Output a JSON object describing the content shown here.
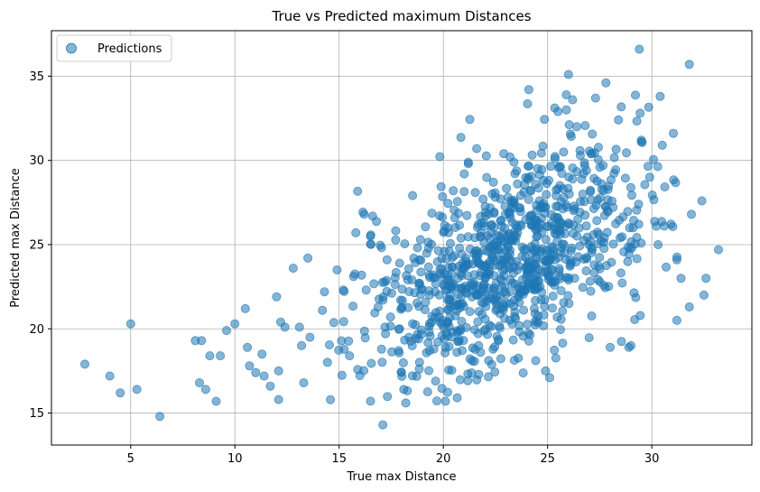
{
  "chart_data": {
    "type": "scatter",
    "title": "True vs Predicted maximum Distances",
    "xlabel": "True max Distance",
    "ylabel": "Predicted max Distance",
    "xlim": [
      1.2,
      34.8
    ],
    "ylim": [
      13.1,
      37.7
    ],
    "xticks": [
      5,
      10,
      15,
      20,
      25,
      30
    ],
    "yticks": [
      15,
      20,
      25,
      30,
      35
    ],
    "grid": true,
    "legend_position": "top-left",
    "color": "#1f77b4",
    "alpha": 0.55,
    "series": [
      {
        "name": "Predictions",
        "seed": 7,
        "x": [
          2.8,
          4.0,
          4.5,
          5.0,
          5.3,
          6.4,
          8.1,
          8.3,
          8.4,
          8.6,
          8.8,
          9.1,
          9.3,
          9.6,
          10.0,
          10.5,
          10.6,
          10.7,
          11.0,
          11.3,
          11.4,
          11.7,
          12.0,
          12.1,
          12.1,
          12.2,
          12.4,
          12.8,
          13.1,
          13.2,
          13.3,
          13.5,
          13.6,
          14.2,
          14.3,
          14.9,
          15.2,
          15.5,
          15.8,
          16.2,
          16.3,
          16.5,
          17.1,
          17.1,
          17.2,
          17.3,
          17.9,
          18.1,
          18.2,
          18.9,
          19.5,
          20.1,
          21.0,
          21.2,
          21.6,
          22.4,
          22.9,
          23.2,
          24.1,
          24.9,
          25.1,
          25.5,
          25.9,
          26.0,
          26.2,
          26.4,
          27.3,
          27.8,
          28.0,
          28.4,
          28.9,
          29.0,
          29.4,
          29.5,
          29.9,
          30.4,
          30.5,
          31.2,
          31.4,
          31.8,
          31.9,
          32.4,
          32.6,
          33.2,
          31.8,
          31.2,
          30.6,
          32.5,
          30.3,
          29.1
        ],
        "y": [
          17.9,
          17.2,
          16.2,
          20.3,
          16.4,
          14.8,
          19.3,
          16.8,
          19.3,
          16.4,
          18.4,
          15.7,
          18.4,
          19.9,
          20.3,
          21.2,
          18.9,
          17.8,
          17.4,
          18.5,
          17.2,
          16.6,
          21.9,
          15.8,
          17.5,
          20.4,
          20.1,
          23.6,
          20.1,
          19.0,
          16.8,
          24.2,
          19.5,
          21.1,
          22.2,
          23.5,
          22.3,
          18.4,
          25.7,
          26.8,
          22.3,
          25.5,
          14.3,
          21.7,
          20.1,
          24.1,
          23.9,
          16.4,
          15.6,
          25.3,
          23.2,
          15.7,
          29.2,
          29.8,
          30.7,
          28.7,
          30.4,
          30.2,
          34.2,
          17.5,
          17.1,
          32.9,
          33.0,
          35.1,
          33.6,
          32.0,
          33.7,
          34.6,
          18.9,
          32.4,
          18.9,
          19.0,
          36.6,
          31.2,
          29.0,
          33.8,
          30.9,
          20.5,
          23.0,
          35.7,
          26.8,
          27.6,
          23.0,
          24.7,
          21.3,
          24.1,
          26.1,
          22.0,
          25.0,
          26.0
        ]
      }
    ],
    "cluster": {
      "note": "dense cloud of predictions",
      "count": 980,
      "center": [
        23.1,
        23.9
      ],
      "spread": [
        3.5,
        3.3
      ]
    }
  }
}
